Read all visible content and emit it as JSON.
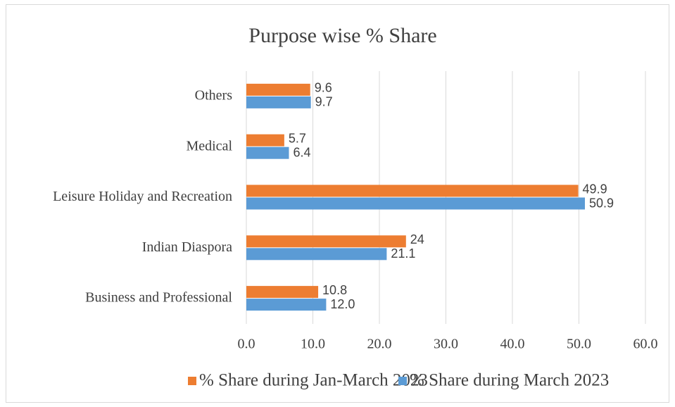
{
  "chart_data": {
    "type": "hbar",
    "title": "Purpose wise % Share",
    "categories": [
      "Business and Professional",
      "Indian Diaspora",
      "Leisure Holiday and Recreation",
      "Medical",
      "Others"
    ],
    "series": [
      {
        "name": "% Share during Jan-March 2023",
        "color": "#ed7d31",
        "values": [
          10.8,
          24,
          49.9,
          5.7,
          9.6
        ],
        "value_labels": [
          "10.8",
          "24",
          "49.9",
          "5.7",
          "9.6"
        ]
      },
      {
        "name": "% Share during March 2023",
        "color": "#5b9bd5",
        "values": [
          12.0,
          21.1,
          50.9,
          6.4,
          9.7
        ],
        "value_labels": [
          "12.0",
          "21.1",
          "50.9",
          "6.4",
          "9.7"
        ]
      }
    ],
    "xlim": [
      0,
      60
    ],
    "xticks": [
      {
        "value": 0,
        "label": "0.0"
      },
      {
        "value": 10,
        "label": "10.0"
      },
      {
        "value": 20,
        "label": "20.0"
      },
      {
        "value": 30,
        "label": "30.0"
      },
      {
        "value": 40,
        "label": "40.0"
      },
      {
        "value": 50,
        "label": "50.0"
      },
      {
        "value": 60,
        "label": "60.0"
      }
    ],
    "grid": true,
    "legend": "bottom"
  }
}
